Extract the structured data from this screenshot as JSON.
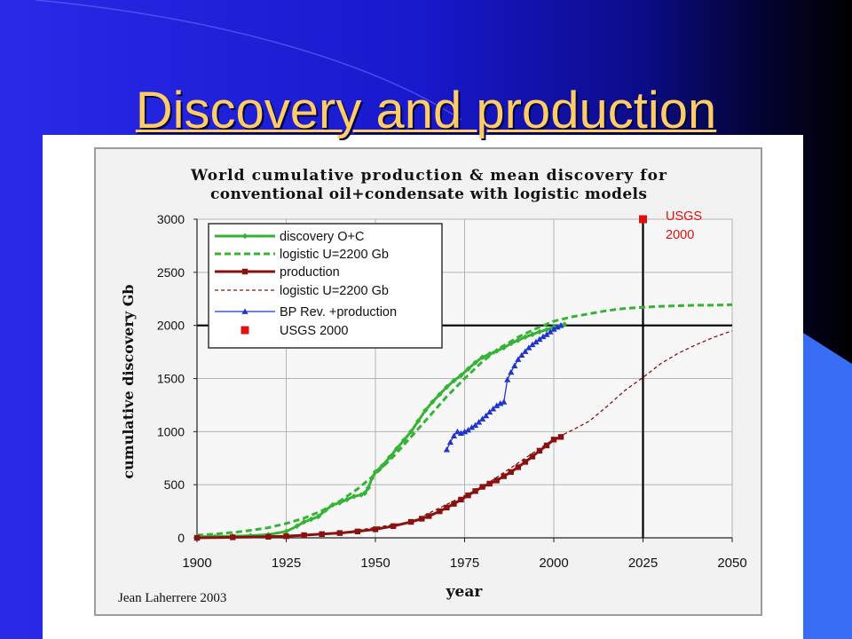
{
  "slide": {
    "title": "Discovery and production",
    "title_color": "#FFCC66"
  },
  "chart_data": {
    "type": "line",
    "title_lines": [
      "World cumulative production & mean discovery for",
      "conventional oil+condensate with logistic models"
    ],
    "xlabel": "year",
    "ylabel": "cumulative discovery Gb",
    "xlim": [
      1900,
      2050
    ],
    "ylim": [
      0,
      3000
    ],
    "xticks": [
      1900,
      1925,
      1950,
      1975,
      2000,
      2025,
      2050
    ],
    "yticks": [
      0,
      500,
      1000,
      1500,
      2000,
      2500,
      3000
    ],
    "grid": true,
    "legend": "top-left",
    "reference_lines": [
      {
        "axis": "y",
        "value": 2000
      },
      {
        "axis": "x",
        "value": 2025
      }
    ],
    "annotation": [
      "USGS",
      "2000"
    ],
    "credit": "Jean Laherrere 2003",
    "series": [
      {
        "name": "discovery O+C",
        "line": "solid",
        "marker": "diamond",
        "color": "#35b335",
        "points": [
          [
            1900,
            10
          ],
          [
            1905,
            12
          ],
          [
            1910,
            15
          ],
          [
            1915,
            20
          ],
          [
            1920,
            30
          ],
          [
            1925,
            60
          ],
          [
            1928,
            110
          ],
          [
            1930,
            150
          ],
          [
            1932,
            175
          ],
          [
            1934,
            200
          ],
          [
            1936,
            260
          ],
          [
            1938,
            310
          ],
          [
            1940,
            330
          ],
          [
            1942,
            360
          ],
          [
            1944,
            390
          ],
          [
            1946,
            405
          ],
          [
            1947,
            420
          ],
          [
            1948,
            470
          ],
          [
            1949,
            560
          ],
          [
            1950,
            620
          ],
          [
            1952,
            680
          ],
          [
            1954,
            760
          ],
          [
            1956,
            840
          ],
          [
            1958,
            920
          ],
          [
            1960,
            1000
          ],
          [
            1962,
            1100
          ],
          [
            1964,
            1200
          ],
          [
            1966,
            1280
          ],
          [
            1968,
            1350
          ],
          [
            1970,
            1420
          ],
          [
            1972,
            1480
          ],
          [
            1974,
            1530
          ],
          [
            1976,
            1590
          ],
          [
            1978,
            1650
          ],
          [
            1980,
            1700
          ],
          [
            1982,
            1730
          ],
          [
            1984,
            1760
          ],
          [
            1986,
            1790
          ],
          [
            1988,
            1830
          ],
          [
            1990,
            1860
          ],
          [
            1992,
            1890
          ],
          [
            1994,
            1915
          ],
          [
            1996,
            1940
          ],
          [
            1998,
            1960
          ],
          [
            2000,
            1985
          ],
          [
            2002,
            2000
          ],
          [
            2003,
            2010
          ]
        ]
      },
      {
        "name": "logistic U=2200 Gb",
        "line": "dashed",
        "marker": "none",
        "color": "#35b335",
        "points": [
          [
            1900,
            25
          ],
          [
            1905,
            35
          ],
          [
            1910,
            50
          ],
          [
            1915,
            70
          ],
          [
            1920,
            95
          ],
          [
            1925,
            135
          ],
          [
            1930,
            185
          ],
          [
            1935,
            255
          ],
          [
            1940,
            345
          ],
          [
            1945,
            460
          ],
          [
            1950,
            600
          ],
          [
            1955,
            765
          ],
          [
            1960,
            950
          ],
          [
            1965,
            1140
          ],
          [
            1970,
            1330
          ],
          [
            1975,
            1500
          ],
          [
            1980,
            1660
          ],
          [
            1985,
            1790
          ],
          [
            1990,
            1890
          ],
          [
            1995,
            1970
          ],
          [
            2000,
            2040
          ],
          [
            2005,
            2080
          ],
          [
            2010,
            2110
          ],
          [
            2015,
            2140
          ],
          [
            2020,
            2160
          ],
          [
            2025,
            2170
          ],
          [
            2030,
            2180
          ],
          [
            2035,
            2185
          ],
          [
            2040,
            2190
          ],
          [
            2045,
            2190
          ],
          [
            2050,
            2195
          ]
        ]
      },
      {
        "name": "production",
        "line": "solid",
        "marker": "square",
        "color": "#8b1111",
        "points": [
          [
            1900,
            0
          ],
          [
            1910,
            5
          ],
          [
            1920,
            10
          ],
          [
            1925,
            15
          ],
          [
            1930,
            25
          ],
          [
            1935,
            35
          ],
          [
            1940,
            45
          ],
          [
            1945,
            60
          ],
          [
            1950,
            80
          ],
          [
            1955,
            110
          ],
          [
            1960,
            150
          ],
          [
            1963,
            180
          ],
          [
            1965,
            205
          ],
          [
            1968,
            250
          ],
          [
            1970,
            285
          ],
          [
            1972,
            320
          ],
          [
            1974,
            360
          ],
          [
            1976,
            400
          ],
          [
            1978,
            440
          ],
          [
            1980,
            480
          ],
          [
            1982,
            510
          ],
          [
            1984,
            540
          ],
          [
            1986,
            580
          ],
          [
            1988,
            620
          ],
          [
            1990,
            665
          ],
          [
            1992,
            715
          ],
          [
            1994,
            765
          ],
          [
            1996,
            820
          ],
          [
            1998,
            870
          ],
          [
            2000,
            925
          ],
          [
            2002,
            950
          ]
        ]
      },
      {
        "name": "logistic U=2200 Gb",
        "line": "dashed-thin",
        "marker": "none",
        "color": "#8b1111",
        "points": [
          [
            1900,
            5
          ],
          [
            1920,
            15
          ],
          [
            1940,
            45
          ],
          [
            1960,
            150
          ],
          [
            1980,
            480
          ],
          [
            2000,
            930
          ],
          [
            2005,
            1010
          ],
          [
            2010,
            1100
          ],
          [
            2015,
            1240
          ],
          [
            2020,
            1390
          ],
          [
            2025,
            1510
          ],
          [
            2030,
            1640
          ],
          [
            2035,
            1740
          ],
          [
            2040,
            1820
          ],
          [
            2045,
            1890
          ],
          [
            2050,
            1950
          ]
        ]
      },
      {
        "name": "BP Rev. +production",
        "line": "solid-thin",
        "marker": "triangle",
        "color": "#1f35cc",
        "points": [
          [
            1970,
            830
          ],
          [
            1971,
            900
          ],
          [
            1972,
            960
          ],
          [
            1973,
            1000
          ],
          [
            1974,
            985
          ],
          [
            1975,
            1000
          ],
          [
            1976,
            1015
          ],
          [
            1977,
            1040
          ],
          [
            1978,
            1060
          ],
          [
            1979,
            1090
          ],
          [
            1980,
            1120
          ],
          [
            1981,
            1150
          ],
          [
            1982,
            1185
          ],
          [
            1983,
            1215
          ],
          [
            1984,
            1245
          ],
          [
            1985,
            1265
          ],
          [
            1986,
            1280
          ],
          [
            1987,
            1490
          ],
          [
            1988,
            1560
          ],
          [
            1989,
            1620
          ],
          [
            1990,
            1680
          ],
          [
            1991,
            1720
          ],
          [
            1992,
            1755
          ],
          [
            1993,
            1790
          ],
          [
            1994,
            1820
          ],
          [
            1995,
            1845
          ],
          [
            1996,
            1870
          ],
          [
            1997,
            1895
          ],
          [
            1998,
            1915
          ],
          [
            1999,
            1940
          ],
          [
            2000,
            1965
          ],
          [
            2001,
            1985
          ],
          [
            2002,
            2000
          ]
        ]
      },
      {
        "name": "USGS 2000",
        "line": "none",
        "marker": "square",
        "color": "#e01010",
        "points": [
          [
            2025,
            3000
          ]
        ]
      }
    ]
  }
}
